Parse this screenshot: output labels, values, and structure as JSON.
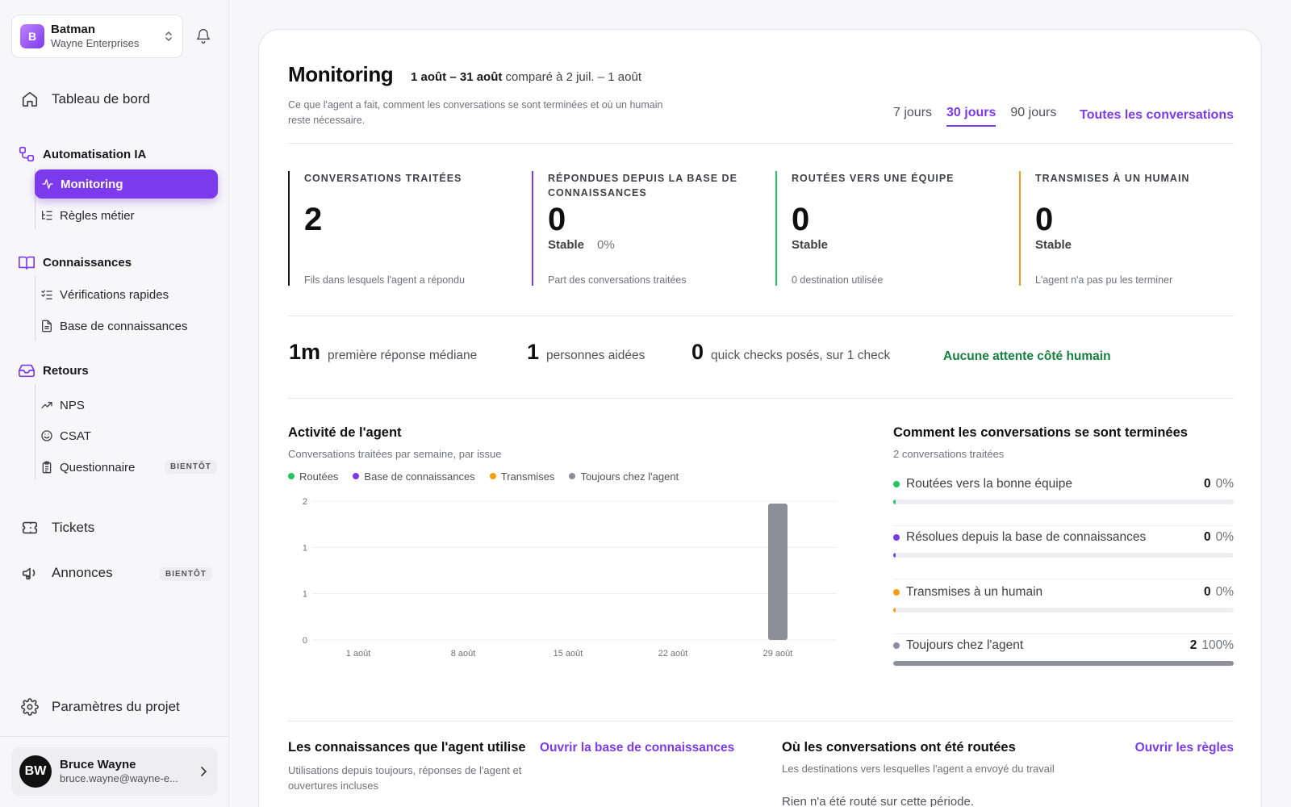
{
  "workspace": {
    "avatar": "B",
    "name": "Batman",
    "org": "Wayne Enterprises"
  },
  "nav": {
    "dashboard": "Tableau de bord",
    "ai_section": "Automatisation IA",
    "monitoring": "Monitoring",
    "rules": "Règles métier",
    "knowledge_section": "Connaissances",
    "quick_checks": "Vérifications rapides",
    "knowledge_base": "Base de connaissances",
    "feedback_section": "Retours",
    "nps": "NPS",
    "csat": "CSAT",
    "survey": "Questionnaire",
    "survey_badge": "BIENTÔT",
    "tickets": "Tickets",
    "announcements": "Annonces",
    "announcements_badge": "BIENTÔT",
    "settings": "Paramètres du projet"
  },
  "user": {
    "initials": "BW",
    "name": "Bruce Wayne",
    "email": "bruce.wayne@wayne-e..."
  },
  "header": {
    "title": "Monitoring",
    "range": "1 août – 31 août",
    "compare": "comparé à 2 juil. – 1 août",
    "subtitle": "Ce que l'agent a fait, comment les conversations se sont terminées et où un humain reste nécessaire.",
    "tabs": [
      "7 jours",
      "30 jours",
      "90 jours"
    ],
    "active_tab": "30 jours",
    "all_conversations": "Toutes les conversations"
  },
  "stats": [
    {
      "label": "Conversations traitées",
      "value": "2",
      "trend": "",
      "pct": "",
      "foot": "Fils dans lesquels l'agent a répondu",
      "color": "#18181b"
    },
    {
      "label": "Répondues depuis la base de connaissances",
      "value": "0",
      "trend": "Stable",
      "pct": "0%",
      "foot": "Part des conversations traitées",
      "color": "#7c3aed"
    },
    {
      "label": "Routées vers une équipe",
      "value": "0",
      "trend": "Stable",
      "pct": "",
      "foot": "0 destination utilisée",
      "color": "#22c55e"
    },
    {
      "label": "Transmises à un humain",
      "value": "0",
      "trend": "Stable",
      "pct": "",
      "foot": "L'agent n'a pas pu les terminer",
      "color": "#f59e0b"
    }
  ],
  "kpis": [
    {
      "num": "1m",
      "text": "première réponse médiane"
    },
    {
      "num": "1",
      "text": "personnes aidées"
    },
    {
      "num": "0",
      "text": "quick checks posés, sur 1 check"
    }
  ],
  "kpi_status": "Aucune attente côté humain",
  "activity": {
    "title": "Activité de l'agent",
    "subtitle": "Conversations traitées par semaine, par issue",
    "legend": [
      {
        "name": "Routées",
        "color": "#22c55e"
      },
      {
        "name": "Base de connaissances",
        "color": "#7c3aed"
      },
      {
        "name": "Transmises",
        "color": "#f59e0b"
      },
      {
        "name": "Toujours chez l'agent",
        "color": "#8e8e9a"
      }
    ]
  },
  "chart_data": {
    "type": "bar",
    "categories": [
      "1 août",
      "8 août",
      "15 août",
      "22 août",
      "29 août"
    ],
    "y_ticks": [
      "0",
      "1",
      "1",
      "2"
    ],
    "ylim": [
      0,
      2
    ],
    "series": [
      {
        "name": "Routées",
        "values": [
          0,
          0,
          0,
          0,
          0
        ]
      },
      {
        "name": "Base de connaissances",
        "values": [
          0,
          0,
          0,
          0,
          0
        ]
      },
      {
        "name": "Transmises",
        "values": [
          0,
          0,
          0,
          0,
          0
        ]
      },
      {
        "name": "Toujours chez l'agent",
        "values": [
          0,
          0,
          0,
          0,
          2
        ]
      }
    ],
    "stacked": true,
    "grid": true,
    "legend": "top-left"
  },
  "outcomes": {
    "title": "Comment les conversations se sont terminées",
    "subtitle": "2 conversations traitées",
    "items": [
      {
        "label": "Routées vers la bonne équipe",
        "count": "0",
        "pct": "0%",
        "fraction": 0.0,
        "color": "#22c55e"
      },
      {
        "label": "Résolues depuis la base de connaissances",
        "count": "0",
        "pct": "0%",
        "fraction": 0.0,
        "color": "#7c3aed"
      },
      {
        "label": "Transmises à un humain",
        "count": "0",
        "pct": "0%",
        "fraction": 0.0,
        "color": "#f59e0b"
      },
      {
        "label": "Toujours chez l'agent",
        "count": "2",
        "pct": "100%",
        "fraction": 1.0,
        "color": "#8e8e9a"
      }
    ]
  },
  "knowledge": {
    "title": "Les connaissances que l'agent utilise",
    "link": "Ouvrir la base de connaissances",
    "subtitle": "Utilisations depuis toujours, réponses de l'agent et ouvertures incluses"
  },
  "routing": {
    "title": "Où les conversations ont été routées",
    "link": "Ouvrir les règles",
    "subtitle": "Les destinations vers lesquelles l'agent a envoyé du travail",
    "empty": "Rien n'a été routé sur cette période."
  }
}
